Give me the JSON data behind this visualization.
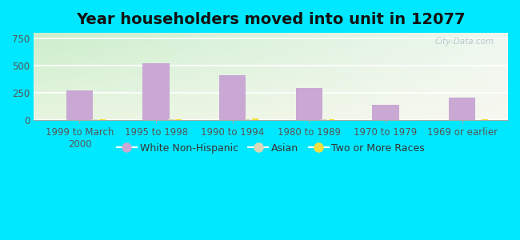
{
  "title": "Year householders moved into unit in 12077",
  "categories": [
    "1999 to March\n2000",
    "1995 to 1998",
    "1990 to 1994",
    "1980 to 1989",
    "1970 to 1979",
    "1969 or earlier"
  ],
  "white_non_hispanic": [
    270,
    520,
    415,
    295,
    140,
    205
  ],
  "asian": [
    12,
    12,
    12,
    10,
    0,
    0
  ],
  "two_or_more_races": [
    10,
    10,
    15,
    10,
    0,
    10
  ],
  "bar_color_white": "#c9a8d4",
  "bar_color_asian": "#d8d8b8",
  "bar_color_two": "#f0e040",
  "yticks": [
    0,
    250,
    500,
    750
  ],
  "ylim": [
    0,
    800
  ],
  "bg_outer": "#00e8ff",
  "title_fontsize": 14,
  "tick_fontsize": 8.5,
  "legend_fontsize": 9,
  "watermark": "City-Data.com"
}
